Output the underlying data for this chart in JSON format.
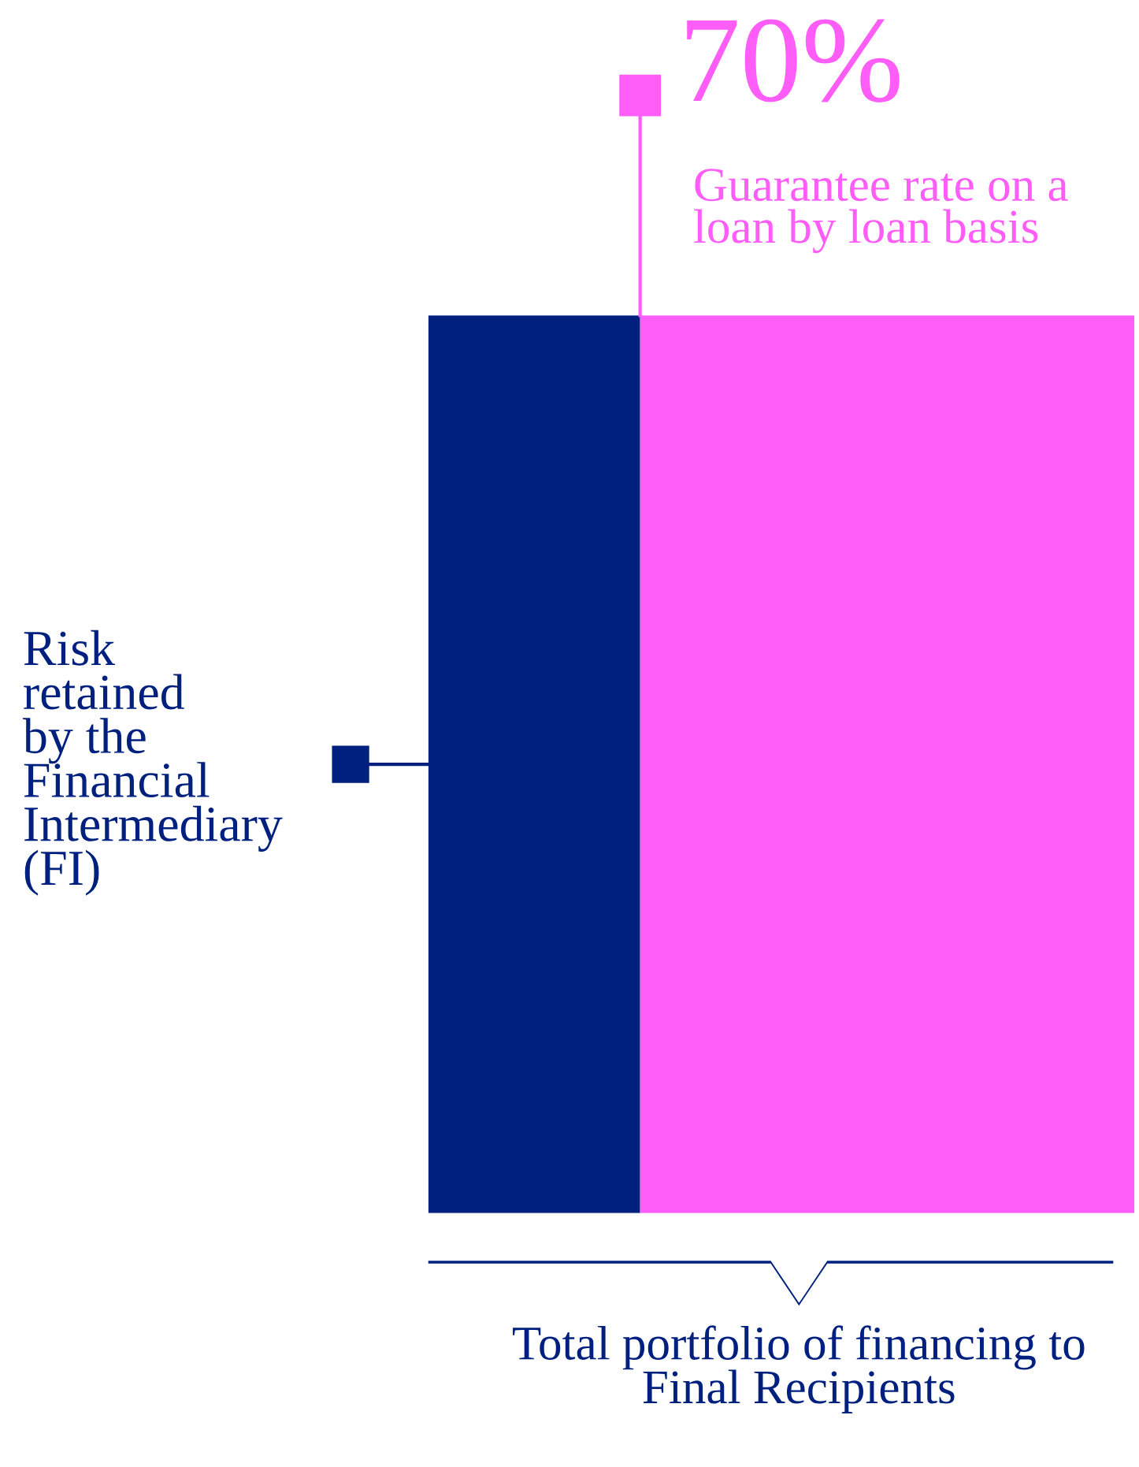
{
  "chart_data": {
    "type": "bar",
    "orientation": "horizontal",
    "stacked": true,
    "xlim": [
      0,
      100
    ],
    "tick_labels": false,
    "xlabel": "Total portfolio of financing to\nFinal Recipients",
    "series": [
      {
        "name": "Risk\nretained\nby the\nFinancial\nIntermediary\n(FI)",
        "color": "#00207f",
        "values": [
          30
        ]
      },
      {
        "name": "Guarantee rate on a\nloan by loan basis",
        "color": "#ff5cf8",
        "values": [
          70
        ],
        "value_labels": [
          "70%"
        ]
      }
    ]
  }
}
